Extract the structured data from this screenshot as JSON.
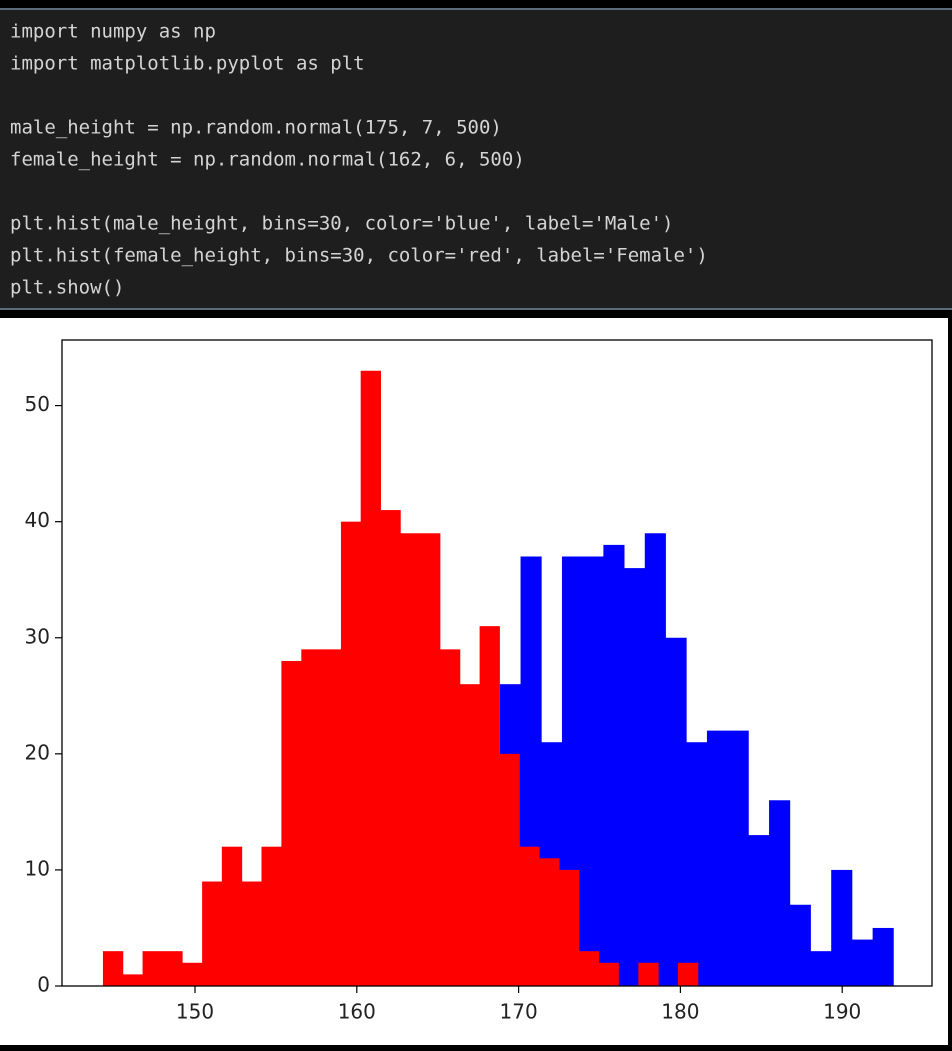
{
  "code": {
    "blocks": [
      [
        "import numpy as np",
        "import matplotlib.pyplot as plt"
      ],
      [
        "male_height = np.random.normal(175, 7, 500)",
        "female_height = np.random.normal(162, 6, 500)"
      ],
      [
        "plt.hist(male_height, bins=30, color='blue', label='Male')",
        "plt.hist(female_height, bins=30, color='red', label='Female')",
        "plt.show()"
      ]
    ]
  },
  "chart_data": {
    "type": "histogram",
    "series": [
      {
        "color": "blue",
        "bins": [
          154.76,
          156.04,
          157.32,
          158.6,
          159.88,
          161.16,
          162.44,
          163.72,
          165.0,
          166.28,
          167.56,
          168.84,
          170.12,
          171.4,
          172.68,
          173.96,
          175.24,
          176.52,
          177.8,
          179.08,
          180.36,
          181.64,
          182.92,
          184.2,
          185.48,
          186.76,
          188.04,
          189.32,
          190.6,
          191.88,
          193.16
        ],
        "values": [
          1,
          1,
          1,
          2,
          3,
          4,
          7,
          9,
          12,
          16,
          20,
          26,
          37,
          21,
          37,
          37,
          38,
          36,
          39,
          30,
          21,
          22,
          22,
          13,
          16,
          7,
          3,
          10,
          4,
          5
        ]
      },
      {
        "color": "red",
        "bins": [
          144.31,
          145.54,
          146.76,
          147.99,
          149.21,
          150.44,
          151.66,
          152.89,
          154.11,
          155.34,
          156.57,
          157.79,
          159.02,
          160.24,
          161.47,
          162.69,
          163.92,
          165.14,
          166.37,
          167.59,
          168.82,
          170.05,
          171.27,
          172.5,
          173.72,
          174.95,
          176.17,
          177.4,
          178.63,
          179.85,
          181.08
        ],
        "values": [
          3,
          1,
          3,
          3,
          2,
          9,
          12,
          9,
          12,
          28,
          29,
          29,
          40,
          53,
          41,
          39,
          39,
          29,
          26,
          31,
          20,
          12,
          11,
          10,
          3,
          2,
          0,
          2,
          0,
          2
        ]
      }
    ],
    "xlim": [
      141.78,
      195.55
    ],
    "xticks": [
      150,
      160,
      170,
      180,
      190
    ],
    "ylim": [
      0,
      55.65
    ],
    "yticks": [
      0,
      10,
      20,
      30,
      40,
      50
    ]
  }
}
